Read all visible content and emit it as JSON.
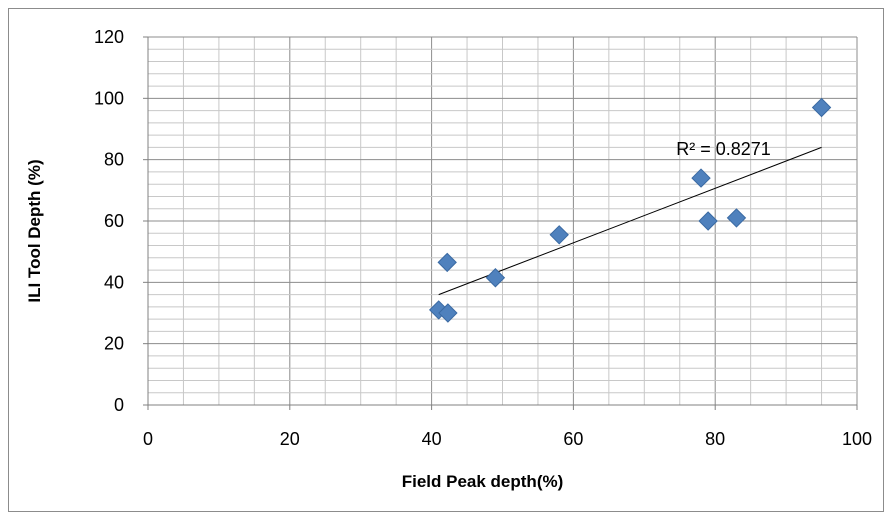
{
  "chart_data": {
    "type": "scatter",
    "title": "",
    "xlabel": "Field Peak depth(%)",
    "ylabel": "ILI Tool Depth (%)",
    "xlim": [
      0,
      100
    ],
    "ylim": [
      0,
      120
    ],
    "x_ticks": [
      "0",
      "20",
      "40",
      "60",
      "80",
      "100"
    ],
    "y_ticks": [
      "0",
      "20",
      "40",
      "60",
      "80",
      "100",
      "120"
    ],
    "grid": true,
    "legend": "none",
    "points": [
      {
        "x": 41,
        "y": 31
      },
      {
        "x": 42.3,
        "y": 30
      },
      {
        "x": 42.2,
        "y": 46.5
      },
      {
        "x": 49,
        "y": 41.5
      },
      {
        "x": 58,
        "y": 55.5
      },
      {
        "x": 78,
        "y": 74
      },
      {
        "x": 79,
        "y": 60
      },
      {
        "x": 83,
        "y": 61
      },
      {
        "x": 95,
        "y": 97
      }
    ],
    "trendline": {
      "type": "linear",
      "x_start": 41,
      "y_start": 36,
      "x_end": 95,
      "y_end": 84
    },
    "annotation": "R² = 0.8271",
    "marker_color": "#4f81bd",
    "grid_color": "#a6a6a6",
    "trendline_color": "#000000"
  }
}
